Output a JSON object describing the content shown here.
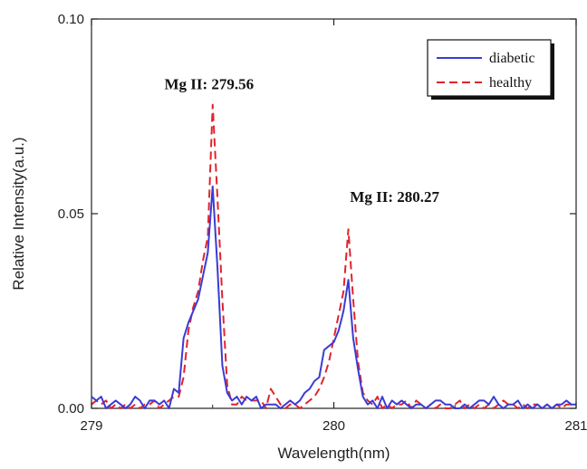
{
  "chart_data": {
    "type": "line",
    "title": "",
    "xlabel": "Wavelength(nm)",
    "ylabel": "Relative Intensity(a.u.)",
    "xlim": [
      279,
      281
    ],
    "ylim": [
      0,
      0.1
    ],
    "x_ticks": [
      "279",
      "280",
      "281"
    ],
    "y_ticks": [
      "0.00",
      "0.05",
      "0.10"
    ],
    "x_tick_values": [
      279,
      280,
      281
    ],
    "y_tick_values": [
      0,
      0.05,
      0.1
    ],
    "grid": false,
    "legend_position": "top-right",
    "annotations": [
      {
        "text": "Mg II: 279.56",
        "x": 279.56,
        "y": 0.082
      },
      {
        "text": "Mg II: 280.27",
        "x": 280.27,
        "y": 0.053
      }
    ],
    "series": [
      {
        "name": "diabetic",
        "color": "#3b3bd6",
        "style": "solid",
        "x": [
          279.0,
          279.02,
          279.04,
          279.06,
          279.08,
          279.1,
          279.12,
          279.14,
          279.16,
          279.18,
          279.2,
          279.22,
          279.24,
          279.26,
          279.28,
          279.3,
          279.32,
          279.34,
          279.36,
          279.38,
          279.4,
          279.42,
          279.44,
          279.46,
          279.48,
          279.5,
          279.52,
          279.54,
          279.56,
          279.58,
          279.6,
          279.62,
          279.64,
          279.66,
          279.68,
          279.7,
          279.72,
          279.74,
          279.76,
          279.78,
          279.8,
          279.82,
          279.84,
          279.86,
          279.88,
          279.9,
          279.92,
          279.94,
          279.96,
          279.98,
          280.0,
          280.02,
          280.04,
          280.06,
          280.08,
          280.1,
          280.12,
          280.14,
          280.16,
          280.18,
          280.2,
          280.22,
          280.24,
          280.26,
          280.28,
          280.3,
          280.32,
          280.34,
          280.36,
          280.38,
          280.4,
          280.42,
          280.44,
          280.46,
          280.48,
          280.5,
          280.52,
          280.54,
          280.56,
          280.58,
          280.6,
          280.62,
          280.64,
          280.66,
          280.68,
          280.7,
          280.72,
          280.74,
          280.76,
          280.78,
          280.8,
          280.82,
          280.84,
          280.86,
          280.88,
          280.9,
          280.92,
          280.94,
          280.96,
          280.98,
          281.0
        ],
        "values": [
          0.003,
          0.002,
          0.003,
          0.0,
          0.001,
          0.002,
          0.001,
          0.0,
          0.001,
          0.003,
          0.002,
          0.0,
          0.002,
          0.002,
          0.001,
          0.002,
          0.0,
          0.005,
          0.004,
          0.018,
          0.022,
          0.025,
          0.028,
          0.034,
          0.04,
          0.057,
          0.036,
          0.011,
          0.004,
          0.002,
          0.003,
          0.001,
          0.003,
          0.002,
          0.003,
          0.0,
          0.001,
          0.001,
          0.001,
          0.0,
          0.001,
          0.002,
          0.001,
          0.002,
          0.004,
          0.005,
          0.007,
          0.008,
          0.015,
          0.016,
          0.017,
          0.02,
          0.025,
          0.033,
          0.018,
          0.01,
          0.003,
          0.001,
          0.002,
          0.0,
          0.003,
          0.0,
          0.002,
          0.001,
          0.002,
          0.001,
          0.0,
          0.001,
          0.001,
          0.0,
          0.001,
          0.002,
          0.002,
          0.001,
          0.001,
          0.0,
          0.0,
          0.001,
          0.0,
          0.001,
          0.002,
          0.002,
          0.001,
          0.003,
          0.001,
          0.0,
          0.001,
          0.001,
          0.002,
          0.0,
          0.001,
          0.0,
          0.001,
          0.0,
          0.001,
          0.0,
          0.001,
          0.001,
          0.002,
          0.001,
          0.001
        ]
      },
      {
        "name": "healthy",
        "color": "#e0242c",
        "style": "dashed",
        "x": [
          279.0,
          279.02,
          279.04,
          279.06,
          279.08,
          279.1,
          279.12,
          279.14,
          279.16,
          279.18,
          279.2,
          279.22,
          279.24,
          279.26,
          279.28,
          279.3,
          279.32,
          279.34,
          279.36,
          279.38,
          279.4,
          279.42,
          279.44,
          279.46,
          279.48,
          279.5,
          279.52,
          279.54,
          279.56,
          279.58,
          279.6,
          279.62,
          279.64,
          279.66,
          279.68,
          279.7,
          279.72,
          279.74,
          279.76,
          279.78,
          279.8,
          279.82,
          279.84,
          279.86,
          279.88,
          279.9,
          279.92,
          279.94,
          279.96,
          279.98,
          280.0,
          280.02,
          280.04,
          280.06,
          280.08,
          280.1,
          280.12,
          280.14,
          280.16,
          280.18,
          280.2,
          280.22,
          280.24,
          280.26,
          280.28,
          280.3,
          280.32,
          280.34,
          280.36,
          280.38,
          280.4,
          280.42,
          280.44,
          280.46,
          280.48,
          280.5,
          280.52,
          280.54,
          280.56,
          280.58,
          280.6,
          280.62,
          280.64,
          280.66,
          280.68,
          280.7,
          280.72,
          280.74,
          280.76,
          280.78,
          280.8,
          280.82,
          280.84,
          280.86,
          280.88,
          280.9,
          280.92,
          280.94,
          280.96,
          280.98,
          281.0
        ],
        "values": [
          0.001,
          0.002,
          0.001,
          0.002,
          0.0,
          0.001,
          0.0,
          0.001,
          0.0,
          0.001,
          0.0,
          0.001,
          0.001,
          0.002,
          0.0,
          0.001,
          0.002,
          0.003,
          0.003,
          0.008,
          0.02,
          0.026,
          0.03,
          0.038,
          0.044,
          0.078,
          0.054,
          0.028,
          0.006,
          0.001,
          0.001,
          0.003,
          0.002,
          0.002,
          0.002,
          0.002,
          0.0,
          0.005,
          0.003,
          0.001,
          0.0,
          0.001,
          0.001,
          0.0,
          0.001,
          0.002,
          0.003,
          0.005,
          0.008,
          0.012,
          0.018,
          0.024,
          0.03,
          0.046,
          0.028,
          0.012,
          0.004,
          0.002,
          0.001,
          0.003,
          0.0,
          0.001,
          0.0,
          0.001,
          0.001,
          0.002,
          0.0,
          0.002,
          0.001,
          0.0,
          0.001,
          0.0,
          0.001,
          0.0,
          0.0,
          0.001,
          0.002,
          0.0,
          0.001,
          0.0,
          0.001,
          0.0,
          0.001,
          0.0,
          0.001,
          0.002,
          0.001,
          0.001,
          0.0,
          0.001,
          0.0,
          0.001,
          0.001,
          0.0,
          0.001,
          0.0,
          0.001,
          0.0,
          0.001,
          0.001,
          0.001
        ]
      }
    ]
  }
}
